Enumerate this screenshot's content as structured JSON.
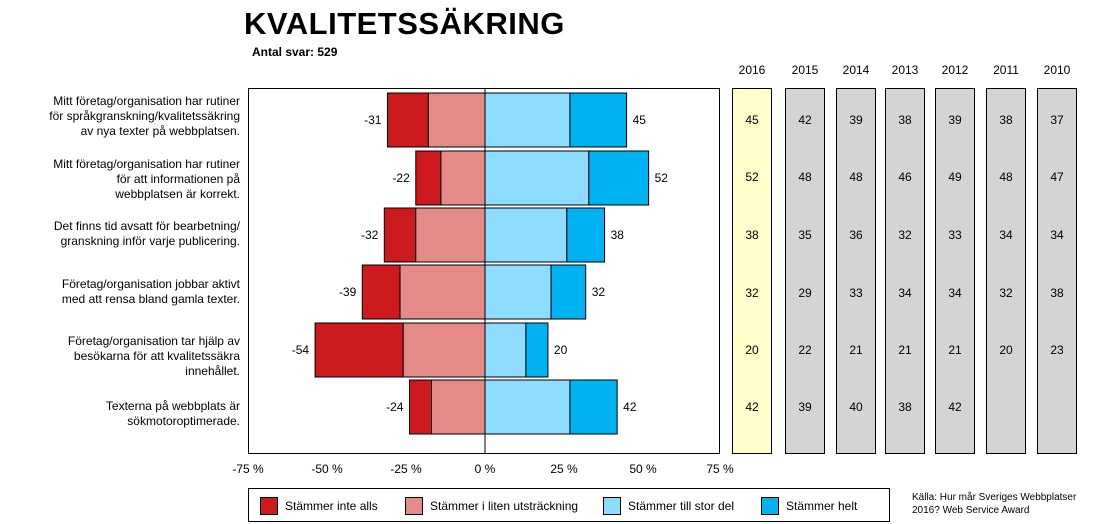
{
  "title": "KVALITETSSÄKRING",
  "subtitle": "Antal svar: 529",
  "source": {
    "line1": "Källa: Hur mår Sveriges Webbplatser",
    "line2": "2016? Web Service Award"
  },
  "colors": {
    "not_at_all": "#cc1a1f",
    "small_extent": "#e48a88",
    "large_extent": "#8edcff",
    "fully": "#00b2f0",
    "current_year_bg": "#ffffcc",
    "past_year_bg": "#d4d4d4"
  },
  "legend": [
    {
      "label": "Stämmer inte alls",
      "color": "#cc1a1f"
    },
    {
      "label": "Stämmer i liten utsträckning",
      "color": "#e48a88"
    },
    {
      "label": "Stämmer till stor del",
      "color": "#8edcff"
    },
    {
      "label": "Stämmer helt",
      "color": "#00b2f0"
    }
  ],
  "questions": [
    "Mitt företag/organisation  har rutiner\nför språkgranskning/kvalitetssäkring\nav nya texter på webbplatsen.",
    "Mitt företag/organisation  har rutiner\nför att informationen  på\nwebbplatsen är korrekt.",
    "Det finns tid avsatt för bearbetning/\ngranskning inför varje publicering.",
    "Företag/organisation  jobbar aktivt\nmed att rensa bland gamla texter.",
    "Företag/organisation  tar hjälp av\nbesökarna för att kvalitetssäkra\ninnehållet.",
    "Texterna på webbplats är\nsökmotoroptimerade."
  ],
  "chart_data": {
    "type": "bar",
    "orientation": "horizontal-diverging",
    "title": "KVALITETSSÄKRING",
    "subtitle": "Antal svar: 529",
    "xlim": [
      -75,
      75
    ],
    "x_ticks": [
      "-75 %",
      "-50 %",
      "-25 %",
      "0 %",
      "25 %",
      "50 %",
      "75 %"
    ],
    "categories": [
      "Mitt företag/organisation  har rutiner för språkgranskning/kvalitetssäkring av nya texter på webbplatsen.",
      "Mitt företag/organisation  har rutiner för att informationen  på webbplatsen är korrekt.",
      "Det finns tid avsatt för bearbetning/ granskning inför varje publicering.",
      "Företag/organisation  jobbar aktivt med att rensa bland gamla texter.",
      "Företag/organisation  tar hjälp av besökarna för att kvalitetssäkra innehållet.",
      "Texterna på webbplats är sökmotoroptimerade."
    ],
    "series": [
      {
        "name": "Stämmer inte alls",
        "values": [
          -13,
          -8,
          -10,
          -12,
          -28,
          -7
        ]
      },
      {
        "name": "Stämmer i liten utsträckning",
        "values": [
          -18,
          -14,
          -22,
          -27,
          -26,
          -17
        ]
      },
      {
        "name": "Stämmer till stor del",
        "values": [
          27,
          33,
          26,
          21,
          13,
          27
        ]
      },
      {
        "name": "Stämmer helt",
        "values": [
          18,
          19,
          12,
          11,
          7,
          15
        ]
      }
    ],
    "negative_totals": [
      -31,
      -22,
      -32,
      -39,
      -54,
      -24
    ],
    "positive_totals": [
      45,
      52,
      38,
      32,
      20,
      42
    ],
    "legend_position": "bottom",
    "grid": false
  },
  "years": {
    "labels": [
      "2016",
      "2015",
      "2014",
      "2013",
      "2012",
      "2011",
      "2010"
    ],
    "values": [
      [
        "45",
        "52",
        "38",
        "32",
        "20",
        "42"
      ],
      [
        "42",
        "48",
        "35",
        "29",
        "22",
        "39"
      ],
      [
        "39",
        "48",
        "36",
        "33",
        "21",
        "40"
      ],
      [
        "38",
        "46",
        "32",
        "34",
        "21",
        "38"
      ],
      [
        "39",
        "49",
        "33",
        "34",
        "21",
        "42"
      ],
      [
        "38",
        "48",
        "34",
        "32",
        "20",
        ""
      ],
      [
        "37",
        "47",
        "34",
        "38",
        "23",
        ""
      ]
    ]
  }
}
